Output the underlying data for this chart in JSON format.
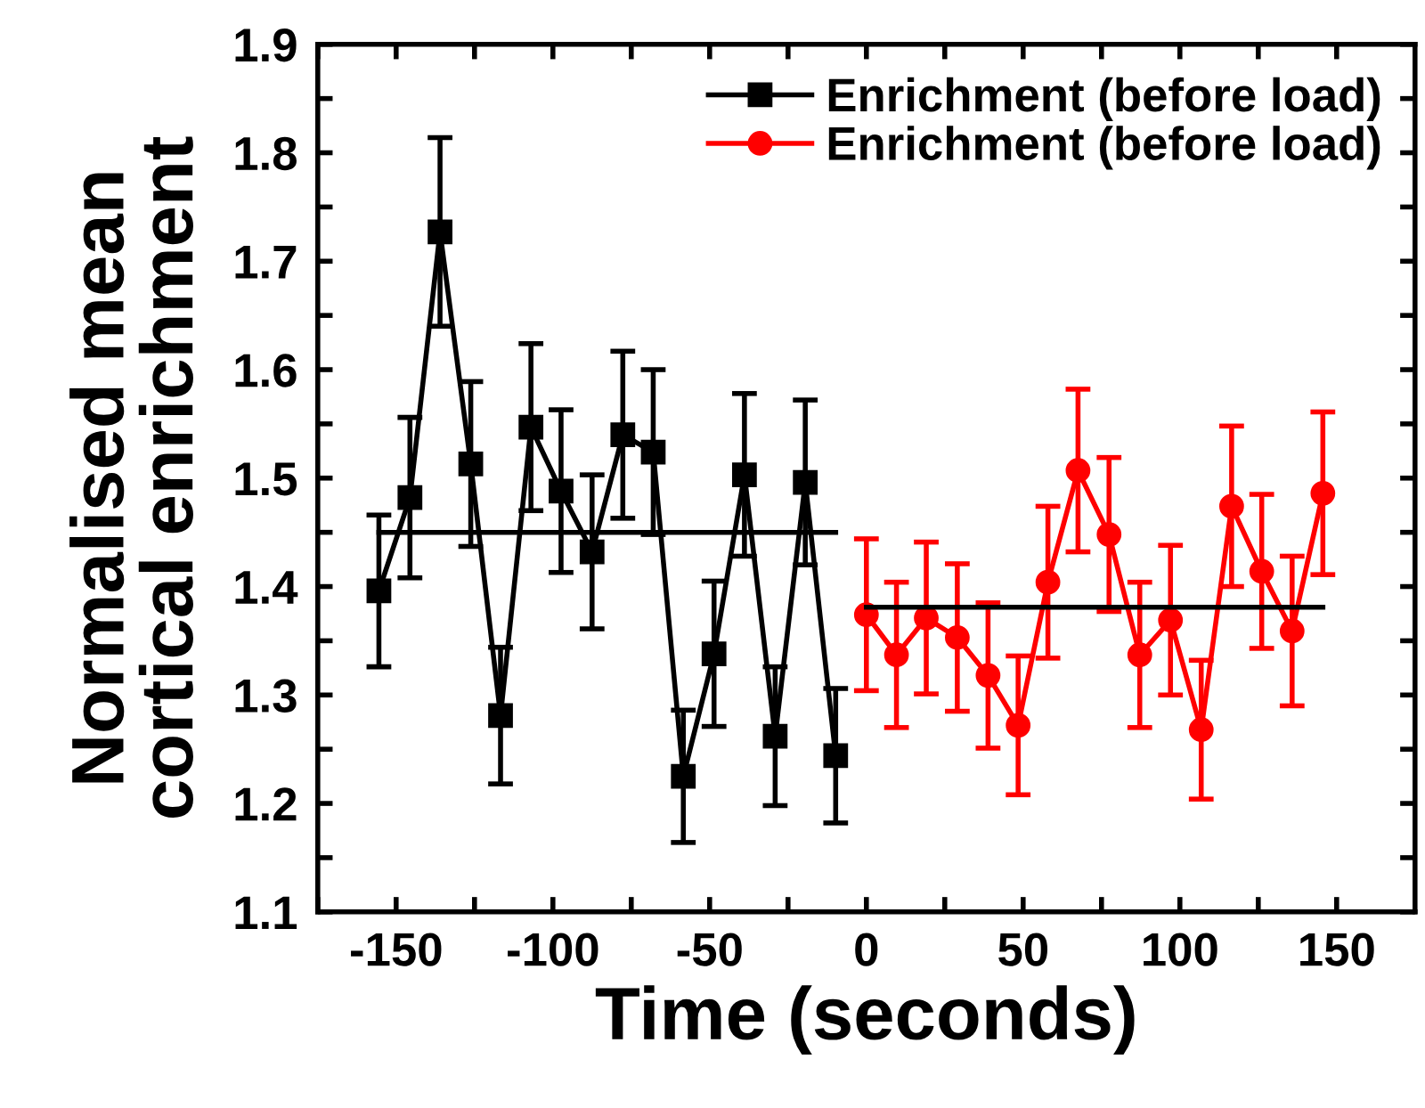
{
  "chart_data": {
    "type": "line",
    "xlabel": "Time (seconds)",
    "ylabel": "Normalised mean\ncortical enrichment",
    "xlim": [
      -175,
      175
    ],
    "ylim": [
      1.1,
      1.9
    ],
    "xticks": [
      {
        "value": -175,
        "label": null
      },
      -150,
      {
        "value": -125,
        "label": null
      },
      -100,
      {
        "value": -75,
        "label": null
      },
      -50,
      {
        "value": -25,
        "label": null
      },
      0,
      {
        "value": 25,
        "label": null
      },
      50,
      {
        "value": 75,
        "label": null
      },
      100,
      {
        "value": 125,
        "label": null
      },
      150
    ],
    "yticks": [
      1.1,
      {
        "value": 1.15,
        "label": null
      },
      1.2,
      {
        "value": 1.25,
        "label": null
      },
      1.3,
      {
        "value": 1.35,
        "label": null
      },
      1.4,
      {
        "value": 1.45,
        "label": null
      },
      1.5,
      {
        "value": 1.55,
        "label": null
      },
      1.6,
      {
        "value": 1.65,
        "label": null
      },
      1.7,
      {
        "value": 1.75,
        "label": null
      },
      1.8,
      {
        "value": 1.85,
        "label": null
      },
      1.9
    ],
    "grid": false,
    "legend": "top right",
    "series": [
      {
        "name": "Enrichment (before load)",
        "color": "#000000",
        "marker": "square",
        "x": [
          -155.5,
          -145.6,
          -136,
          -126.2,
          -116.7,
          -107,
          -97.4,
          -87.5,
          -77.7,
          -68,
          -58.4,
          -48.6,
          -38.9,
          -29.1,
          -19.5,
          -9.8
        ],
        "values": [
          1.396,
          1.482,
          1.727,
          1.513,
          1.281,
          1.547,
          1.488,
          1.432,
          1.54,
          1.524,
          1.225,
          1.338,
          1.503,
          1.262,
          1.496,
          1.244
        ],
        "errors": [
          0.07,
          0.074,
          0.087,
          0.076,
          0.063,
          0.077,
          0.075,
          0.071,
          0.077,
          0.076,
          0.061,
          0.067,
          0.075,
          0.064,
          0.076,
          0.062
        ]
      },
      {
        "name": "Enrichment (before load)",
        "color": "#ff0000",
        "marker": "circle",
        "x": [
          0,
          9.6,
          19.1,
          29,
          38.8,
          48.4,
          57.9,
          67.5,
          77.4,
          87.2,
          97,
          106.8,
          116.5,
          126.1,
          135.8,
          145.6
        ],
        "values": [
          1.374,
          1.337,
          1.371,
          1.353,
          1.318,
          1.272,
          1.404,
          1.507,
          1.448,
          1.337,
          1.369,
          1.268,
          1.474,
          1.414,
          1.359,
          1.486
        ],
        "errors": [
          0.07,
          0.067,
          0.07,
          0.068,
          0.067,
          0.064,
          0.07,
          0.075,
          0.071,
          0.067,
          0.069,
          0.064,
          0.074,
          0.071,
          0.069,
          0.075
        ]
      },
      {
        "color": "#000000",
        "marker": "none",
        "x": [
          -155.5,
          -9.8
        ],
        "values": [
          1.45,
          1.45
        ]
      },
      {
        "color": "#000000",
        "marker": "none",
        "x": [
          0,
          145.6
        ],
        "values": [
          1.381,
          1.381
        ]
      }
    ]
  }
}
